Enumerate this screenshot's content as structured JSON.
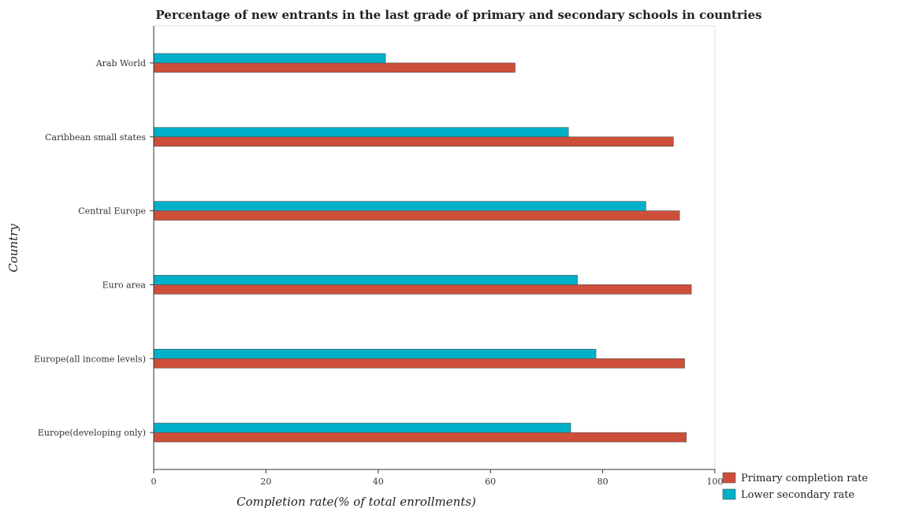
{
  "chart_data": {
    "type": "bar",
    "orientation": "horizontal",
    "title": "Percentage of new entrants in the last grade of primary  and secondary schools in countries",
    "xlabel": "Completion rate(% of total enrollments)",
    "ylabel": "Country",
    "xlim": [
      0,
      100
    ],
    "xticks": [
      0,
      20,
      40,
      60,
      80,
      100
    ],
    "grid": false,
    "legend_position": "bottom-right",
    "categories": [
      "Arab World",
      "Caribbean small states",
      "Central Europe",
      "Euro area",
      "Europe(all income levels)",
      "Europe(developing only)"
    ],
    "series": [
      {
        "name": "Primary completion rate",
        "color": "#cd4f39",
        "values": [
          64.4,
          92.6,
          93.7,
          95.8,
          94.6,
          94.9
        ]
      },
      {
        "name": "Lower secondary rate",
        "color": "#00b0c8",
        "values": [
          41.3,
          73.9,
          87.7,
          75.5,
          78.8,
          74.3
        ]
      }
    ]
  }
}
